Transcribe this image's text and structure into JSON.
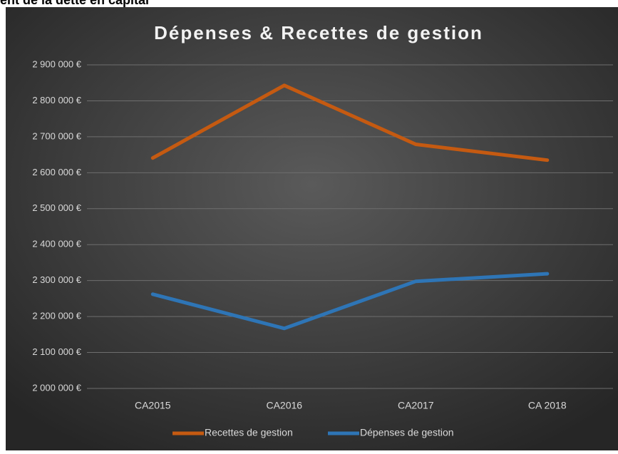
{
  "page_heading": "ent de la dette en capital",
  "chart_data": {
    "type": "line",
    "title": "Dépenses & Recettes de gestion",
    "categories": [
      "CA2015",
      "CA2016",
      "CA2017",
      "CA 2018"
    ],
    "series": [
      {
        "name": "Recettes de gestion",
        "color": "#c55a11",
        "values": [
          2641000,
          2843000,
          2679000,
          2635000
        ]
      },
      {
        "name": "Dépenses de gestion",
        "color": "#2e75b6",
        "values": [
          2262000,
          2167000,
          2298000,
          2319000
        ]
      }
    ],
    "ylim": [
      2000000,
      2900000
    ],
    "yticks": [
      {
        "value": 2000000,
        "label": "2 000 000 €"
      },
      {
        "value": 2100000,
        "label": "2 100 000 €"
      },
      {
        "value": 2200000,
        "label": "2 200 000 €"
      },
      {
        "value": 2300000,
        "label": "2 300 000 €"
      },
      {
        "value": 2400000,
        "label": "2 400 000 €"
      },
      {
        "value": 2500000,
        "label": "2 500 000 €"
      },
      {
        "value": 2600000,
        "label": "2 600 000 €"
      },
      {
        "value": 2700000,
        "label": "2 700 000 €"
      },
      {
        "value": 2800000,
        "label": "2 800 000 €"
      },
      {
        "value": 2900000,
        "label": "2 900 000 €"
      }
    ],
    "grid": true,
    "legend": "bottom"
  }
}
